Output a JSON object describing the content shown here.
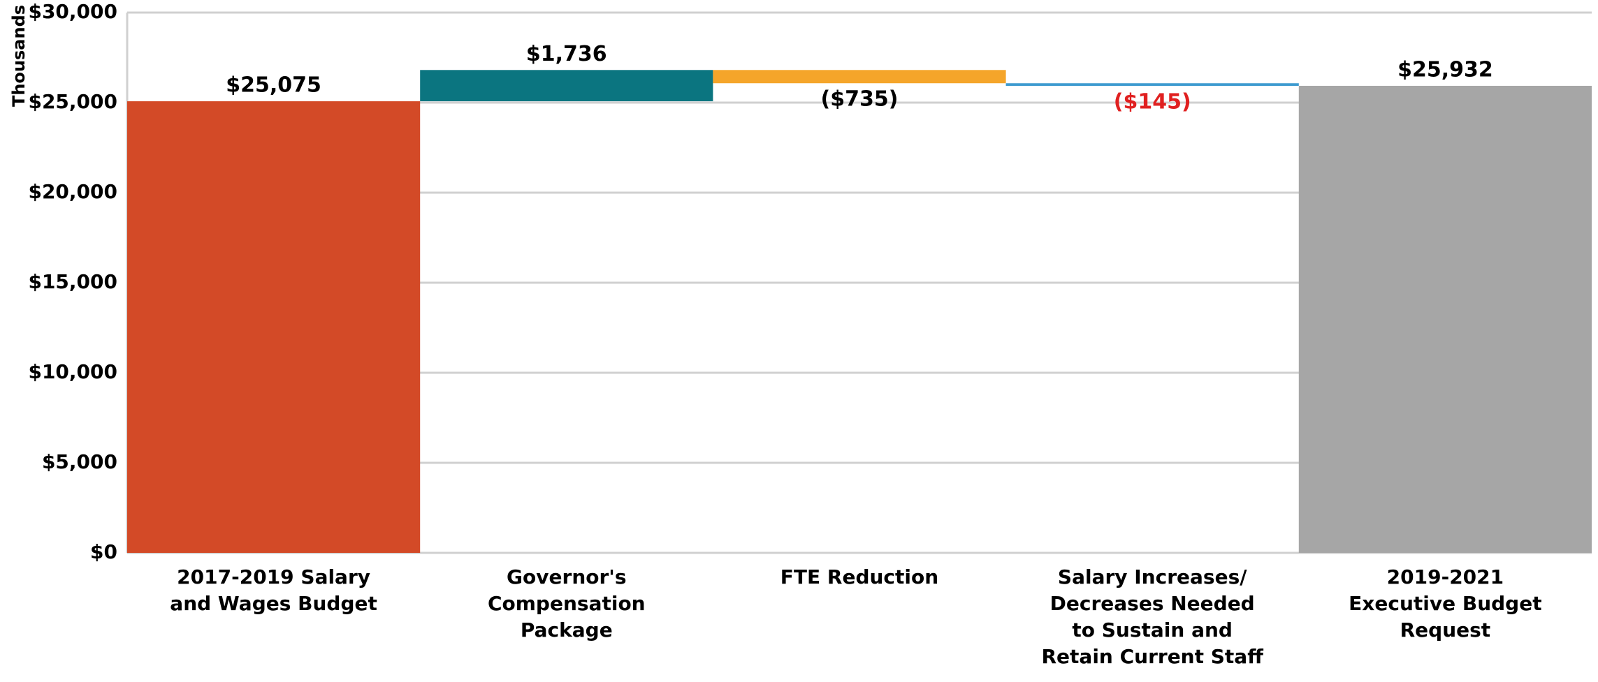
{
  "chart_data": {
    "type": "waterfall",
    "y_axis_label": "Thousands",
    "categories": [
      "2017-2019 Salary and Wages Budget",
      "Governor's Compensation Package",
      "FTE Reduction",
      "Salary Increases/ Decreases Needed to Sustain and Retain Current Staff",
      "2019-2021 Executive Budget Request"
    ],
    "values": [
      25075,
      1736,
      -735,
      -145,
      25932
    ],
    "value_labels": [
      "$25,075",
      "$1,736",
      "($735)",
      "($145)",
      "$25,932"
    ],
    "totals": [
      true,
      false,
      false,
      false,
      true
    ],
    "colors": [
      "#d34a27",
      "#0b7580",
      "#f5a52a",
      "#3e9bd0",
      "#a6a6a6"
    ],
    "value_label_colors": [
      "#000000",
      "#000000",
      "#000000",
      "#e02020",
      "#000000"
    ],
    "ylim": [
      0,
      30000
    ],
    "yticks": [
      {
        "value": 0,
        "label": "$0"
      },
      {
        "value": 5000,
        "label": "$5,000"
      },
      {
        "value": 10000,
        "label": "$10,000"
      },
      {
        "value": 15000,
        "label": "$15,000"
      },
      {
        "value": 20000,
        "label": "$20,000"
      },
      {
        "value": 25000,
        "label": "$25,000"
      },
      {
        "value": 30000,
        "label": "$30,000"
      }
    ],
    "grid": true
  }
}
